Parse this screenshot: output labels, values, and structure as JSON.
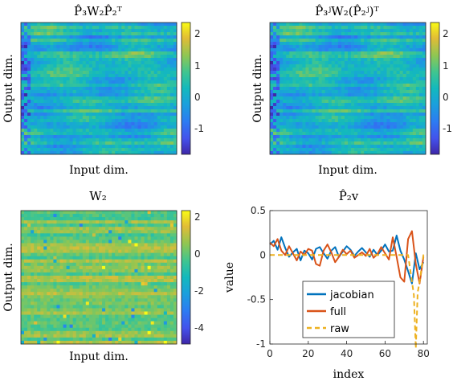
{
  "figure": {
    "panels": [
      {
        "id": "p1",
        "title": "P̂₃W₂P̂₂ᵀ",
        "xlabel": "Input dim.",
        "ylabel": "Output dim.",
        "colorbar": {
          "ticks": [
            2,
            1,
            0,
            -1
          ]
        }
      },
      {
        "id": "p2",
        "title": "P̂₃ʲW₂(P̂₂ʲ)ᵀ",
        "xlabel": "Input dim.",
        "ylabel": "",
        "colorbar": {
          "ticks": [
            2,
            1,
            0,
            -1
          ]
        }
      },
      {
        "id": "p3",
        "title": "W₂",
        "xlabel": "Input dim.",
        "ylabel": "Output dim.",
        "colorbar": {
          "ticks": [
            2,
            0,
            -2,
            -4
          ]
        }
      }
    ]
  },
  "chart_data": [
    {
      "type": "heatmap",
      "title": "P̂₃W₂P̂₂ᵀ",
      "xlabel": "Input dim.",
      "ylabel": "Output dim.",
      "clim": [
        -1.8,
        2.3
      ]
    },
    {
      "type": "heatmap",
      "title": "P̂₃ʲW₂(P̂₂ʲ)ᵀ",
      "xlabel": "Input dim.",
      "ylabel": "",
      "clim": [
        -1.8,
        2.3
      ]
    },
    {
      "type": "heatmap",
      "title": "W₂",
      "xlabel": "Input dim.",
      "ylabel": "Output dim.",
      "clim": [
        -4.8,
        2.3
      ]
    },
    {
      "type": "line",
      "title": "P̂₂v",
      "xlabel": "index",
      "ylabel": "value",
      "xlim": [
        0,
        82
      ],
      "ylim": [
        -1,
        0.5
      ],
      "xticks": [
        0,
        20,
        40,
        60,
        80
      ],
      "yticks": [
        0.5,
        0,
        -0.5,
        -1
      ],
      "legend": "lower-middle",
      "series": [
        {
          "name": "jacobian",
          "color": "#0072BD",
          "style": "solid",
          "x": [
            0,
            2,
            4,
            6,
            8,
            10,
            12,
            14,
            16,
            18,
            20,
            22,
            24,
            26,
            28,
            30,
            32,
            34,
            36,
            38,
            40,
            42,
            44,
            46,
            48,
            50,
            52,
            54,
            56,
            58,
            60,
            62,
            64,
            66,
            68,
            70,
            72,
            74,
            76,
            78,
            80
          ],
          "y": [
            0.12,
            0.16,
            0.06,
            0.2,
            0.08,
            -0.02,
            0.03,
            0.07,
            -0.06,
            0.05,
            0.02,
            -0.05,
            0.07,
            0.09,
            0.02,
            -0.04,
            0.05,
            0.09,
            -0.02,
            0.04,
            0.1,
            0.06,
            -0.01,
            0.04,
            0.08,
            0.03,
            -0.02,
            0.06,
            0.0,
            0.05,
            0.12,
            0.04,
            0.05,
            0.22,
            0.05,
            -0.05,
            -0.18,
            -0.32,
            0.02,
            -0.16,
            -0.08
          ]
        },
        {
          "name": "full",
          "color": "#D95319",
          "style": "solid",
          "x": [
            0,
            2,
            4,
            6,
            8,
            10,
            12,
            14,
            16,
            18,
            20,
            22,
            24,
            26,
            28,
            30,
            32,
            34,
            36,
            38,
            40,
            42,
            44,
            46,
            48,
            50,
            52,
            54,
            56,
            58,
            60,
            62,
            64,
            66,
            68,
            70,
            72,
            74,
            76,
            78,
            80
          ],
          "y": [
            0.14,
            0.1,
            0.18,
            0.05,
            0.0,
            0.1,
            0.02,
            -0.06,
            0.04,
            0.0,
            0.07,
            0.05,
            -0.1,
            -0.12,
            0.05,
            0.12,
            0.03,
            -0.08,
            -0.02,
            0.06,
            0.01,
            0.05,
            -0.03,
            0.0,
            0.03,
            -0.01,
            0.07,
            -0.03,
            0.01,
            0.09,
            0.02,
            -0.05,
            0.2,
            -0.02,
            -0.25,
            -0.3,
            0.18,
            0.27,
            -0.1,
            -0.32,
            -0.02
          ]
        },
        {
          "name": "raw",
          "color": "#EDB120",
          "style": "dashed",
          "x": [
            0,
            70,
            72,
            74,
            75,
            76,
            77,
            78,
            80,
            82
          ],
          "y": [
            0,
            0,
            0,
            -0.3,
            -0.45,
            -1.05,
            -0.42,
            -0.3,
            0,
            0
          ]
        }
      ]
    }
  ],
  "line_panel": {
    "title": "P̂₂v",
    "xlabel": "index",
    "ylabel": "value",
    "legend": [
      "jacobian",
      "full",
      "raw"
    ]
  }
}
